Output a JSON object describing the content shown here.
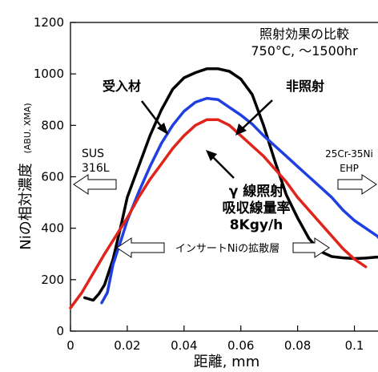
{
  "chart_data": {
    "type": "line",
    "title": "照射効果の比較",
    "subtitle": "750°C, ～1500hr",
    "xlabel": "距離, mm",
    "ylabel": "Niの相対濃度",
    "ylabel_unit": "(ABU. XMA)",
    "xlim": [
      0,
      0.11
    ],
    "ylim": [
      0,
      1200
    ],
    "x_ticks": [
      "0",
      "0.02",
      "0.04",
      "0.06",
      "0.08",
      "0.1"
    ],
    "x_tick_values": [
      0,
      0.02,
      0.04,
      0.06,
      0.08,
      0.1
    ],
    "y_ticks": [
      "0",
      "200",
      "400",
      "600",
      "800",
      "1000",
      "1200"
    ],
    "y_tick_values": [
      0,
      200,
      400,
      600,
      800,
      1000,
      1200
    ],
    "grid": false,
    "series": [
      {
        "name": "受入材",
        "color": "#000000",
        "points": [
          [
            0.005,
            130
          ],
          [
            0.008,
            120
          ],
          [
            0.01,
            145
          ],
          [
            0.012,
            180
          ],
          [
            0.015,
            280
          ],
          [
            0.018,
            420
          ],
          [
            0.02,
            520
          ],
          [
            0.024,
            640
          ],
          [
            0.028,
            760
          ],
          [
            0.032,
            860
          ],
          [
            0.036,
            940
          ],
          [
            0.04,
            985
          ],
          [
            0.044,
            1005
          ],
          [
            0.048,
            1020
          ],
          [
            0.052,
            1020
          ],
          [
            0.056,
            1010
          ],
          [
            0.06,
            980
          ],
          [
            0.064,
            920
          ],
          [
            0.068,
            800
          ],
          [
            0.072,
            660
          ],
          [
            0.076,
            530
          ],
          [
            0.08,
            440
          ],
          [
            0.084,
            360
          ],
          [
            0.088,
            310
          ],
          [
            0.092,
            290
          ],
          [
            0.096,
            285
          ],
          [
            0.1,
            282
          ],
          [
            0.104,
            284
          ],
          [
            0.108,
            288
          ],
          [
            0.11,
            285
          ]
        ]
      },
      {
        "name": "非照射",
        "color": "#1f3fe0",
        "points": [
          [
            0.011,
            110
          ],
          [
            0.013,
            150
          ],
          [
            0.015,
            260
          ],
          [
            0.018,
            360
          ],
          [
            0.02,
            430
          ],
          [
            0.024,
            540
          ],
          [
            0.028,
            640
          ],
          [
            0.032,
            730
          ],
          [
            0.036,
            800
          ],
          [
            0.04,
            855
          ],
          [
            0.044,
            890
          ],
          [
            0.048,
            905
          ],
          [
            0.052,
            900
          ],
          [
            0.056,
            870
          ],
          [
            0.06,
            840
          ],
          [
            0.064,
            805
          ],
          [
            0.068,
            760
          ],
          [
            0.072,
            720
          ],
          [
            0.076,
            680
          ],
          [
            0.08,
            640
          ],
          [
            0.084,
            600
          ],
          [
            0.088,
            560
          ],
          [
            0.092,
            520
          ],
          [
            0.096,
            470
          ],
          [
            0.1,
            430
          ],
          [
            0.104,
            400
          ],
          [
            0.108,
            370
          ],
          [
            0.11,
            345
          ]
        ]
      },
      {
        "name": "γ線照射",
        "color": "#e0231b",
        "points": [
          [
            0.0,
            90
          ],
          [
            0.004,
            150
          ],
          [
            0.008,
            225
          ],
          [
            0.012,
            300
          ],
          [
            0.016,
            370
          ],
          [
            0.02,
            440
          ],
          [
            0.024,
            520
          ],
          [
            0.028,
            590
          ],
          [
            0.032,
            650
          ],
          [
            0.036,
            710
          ],
          [
            0.04,
            760
          ],
          [
            0.044,
            800
          ],
          [
            0.048,
            822
          ],
          [
            0.052,
            822
          ],
          [
            0.056,
            800
          ],
          [
            0.06,
            760
          ],
          [
            0.064,
            720
          ],
          [
            0.068,
            680
          ],
          [
            0.072,
            630
          ],
          [
            0.076,
            580
          ],
          [
            0.08,
            520
          ],
          [
            0.084,
            470
          ],
          [
            0.088,
            420
          ],
          [
            0.092,
            370
          ],
          [
            0.096,
            320
          ],
          [
            0.1,
            280
          ],
          [
            0.104,
            250
          ]
        ]
      }
    ],
    "annotations": {
      "curve_label_asreceived": "受入材",
      "curve_label_unirradiated": "非照射",
      "gamma_line1": "γ 線照射",
      "gamma_line2": "吸収線量率",
      "gamma_line3": "8Kgy/h",
      "left_material_1": "SUS",
      "left_material_2": "316L",
      "right_material_1": "25Cr-35Ni",
      "right_material_2": "EHP",
      "interlayer": "インサートNiの拡散層"
    },
    "colors": {
      "asreceived": "#000000",
      "unirradiated": "#1f3fe0",
      "gamma": "#e0231b"
    }
  }
}
